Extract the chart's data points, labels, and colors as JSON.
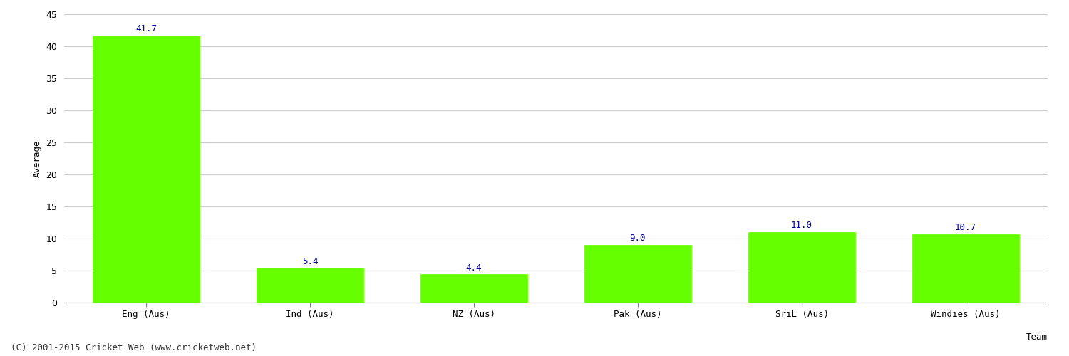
{
  "categories": [
    "Eng (Aus)",
    "Ind (Aus)",
    "NZ (Aus)",
    "Pak (Aus)",
    "SriL (Aus)",
    "Windies (Aus)"
  ],
  "values": [
    41.7,
    5.4,
    4.4,
    9.0,
    11.0,
    10.7
  ],
  "bar_color": "#66ff00",
  "bar_edge_color": "#66ff00",
  "label_color": "#000099",
  "label_fontsize": 9,
  "ylabel": "Average",
  "xlabel": "Team",
  "ylim": [
    0,
    45
  ],
  "yticks": [
    0,
    5,
    10,
    15,
    20,
    25,
    30,
    35,
    40,
    45
  ],
  "grid_color": "#cccccc",
  "background_color": "#ffffff",
  "footer": "(C) 2001-2015 Cricket Web (www.cricketweb.net)",
  "footer_fontsize": 9,
  "footer_color": "#333333",
  "bar_width": 0.65,
  "ylabel_fontsize": 9,
  "xlabel_fontsize": 9,
  "tick_fontsize": 9
}
